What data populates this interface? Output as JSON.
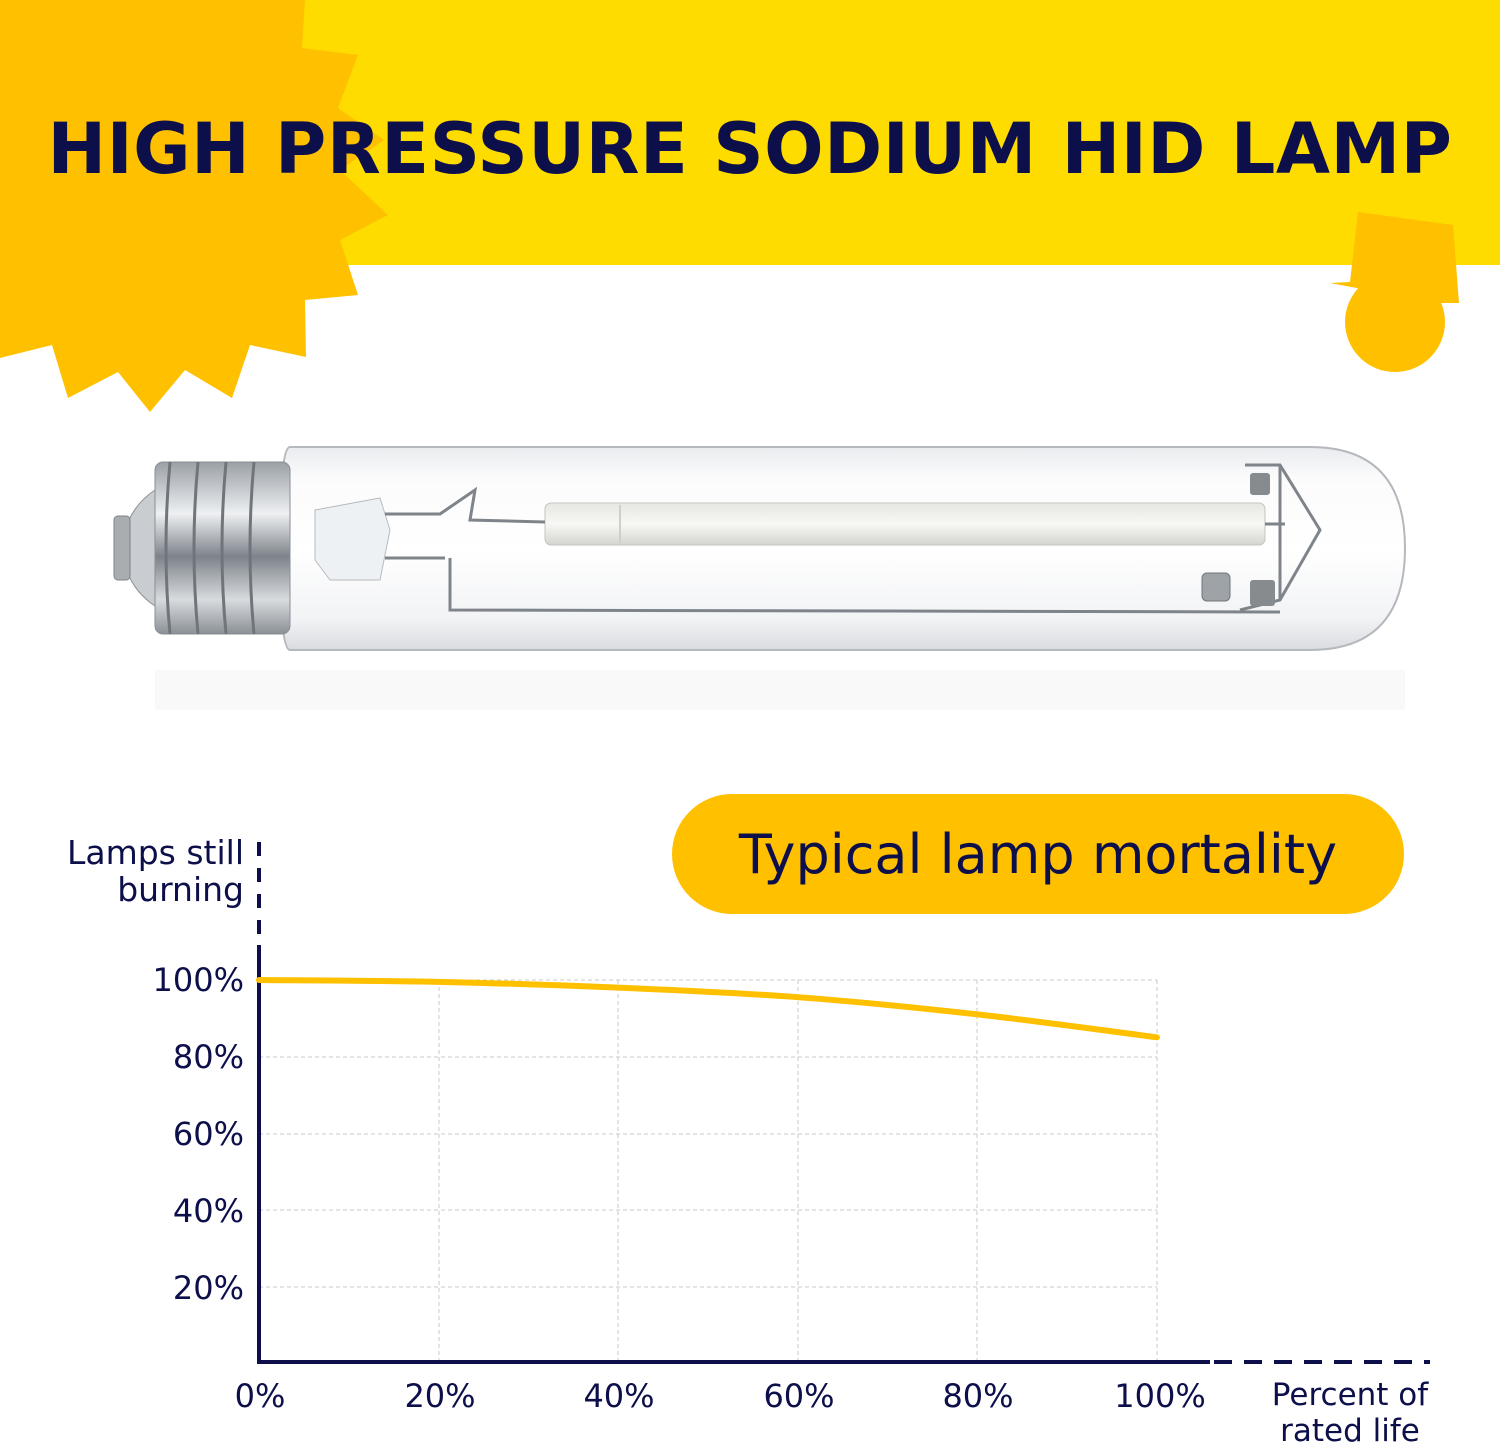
{
  "banner": {
    "title": "HIGH PRESSURE SODIUM HID LAMP",
    "background_color": "#ffdc00",
    "accent_color": "#ffc000",
    "text_color": "#0d0f4a"
  },
  "product_image": {
    "subject": "high-pressure-sodium-tubular-lamp",
    "base": "mogul-screw-base"
  },
  "chart_badge": {
    "label": "Typical lamp mortality"
  },
  "chart_data": {
    "type": "line",
    "title": "Typical lamp mortality",
    "xlabel": "Percent of rated life",
    "ylabel": "Lamps still burning",
    "x": [
      0,
      20,
      40,
      60,
      80,
      100
    ],
    "categories": [
      "0%",
      "20%",
      "40%",
      "60%",
      "80%",
      "100%"
    ],
    "series": [
      {
        "name": "Lamps still burning",
        "color": "#ffc000",
        "values": [
          100,
          99.5,
          98,
          95.5,
          91,
          85
        ]
      }
    ],
    "x_ticks": [
      "0%",
      "20%",
      "40%",
      "60%",
      "80%",
      "100%"
    ],
    "y_ticks": [
      "20%",
      "40%",
      "60%",
      "80%",
      "100%"
    ],
    "xlim": [
      0,
      100
    ],
    "ylim": [
      0,
      100
    ],
    "grid": true,
    "legend": "none"
  },
  "axis_labels": {
    "y_line1": "Lamps still",
    "y_line2": "burning",
    "x_line1": "Percent of",
    "x_line2": "rated life"
  },
  "y_tick_labels": [
    "100%",
    "80%",
    "60%",
    "40%",
    "20%"
  ],
  "x_tick_labels": [
    "0%",
    "20%",
    "40%",
    "60%",
    "80%",
    "100%"
  ]
}
